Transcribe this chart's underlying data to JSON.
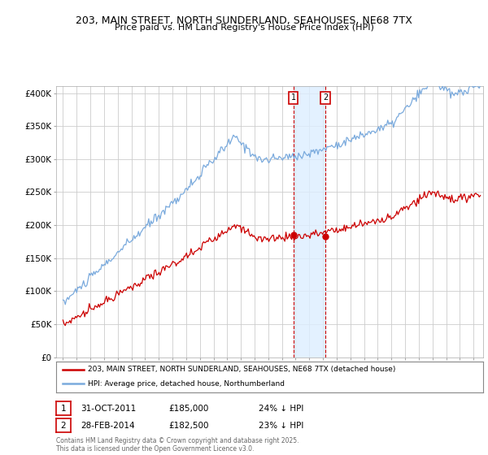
{
  "title": "203, MAIN STREET, NORTH SUNDERLAND, SEAHOUSES, NE68 7TX",
  "subtitle": "Price paid vs. HM Land Registry's House Price Index (HPI)",
  "legend_line1": "203, MAIN STREET, NORTH SUNDERLAND, SEAHOUSES, NE68 7TX (detached house)",
  "legend_line2": "HPI: Average price, detached house, Northumberland",
  "annotation1_date": "31-OCT-2011",
  "annotation1_price": "£185,000",
  "annotation1_hpi": "24% ↓ HPI",
  "annotation2_date": "28-FEB-2014",
  "annotation2_price": "£182,500",
  "annotation2_hpi": "23% ↓ HPI",
  "footer": "Contains HM Land Registry data © Crown copyright and database right 2025.\nThis data is licensed under the Open Government Licence v3.0.",
  "red_color": "#cc0000",
  "blue_color": "#7aaadd",
  "bg_color": "#ffffff",
  "grid_color": "#cccccc",
  "marker1_x": 2011.83,
  "marker2_x": 2014.17,
  "marker1_y": 185000,
  "marker2_y": 182500,
  "vline1_x": 2011.83,
  "vline2_x": 2014.17,
  "ylim": [
    0,
    410000
  ],
  "xlim_start": 1994.5,
  "xlim_end": 2025.7
}
